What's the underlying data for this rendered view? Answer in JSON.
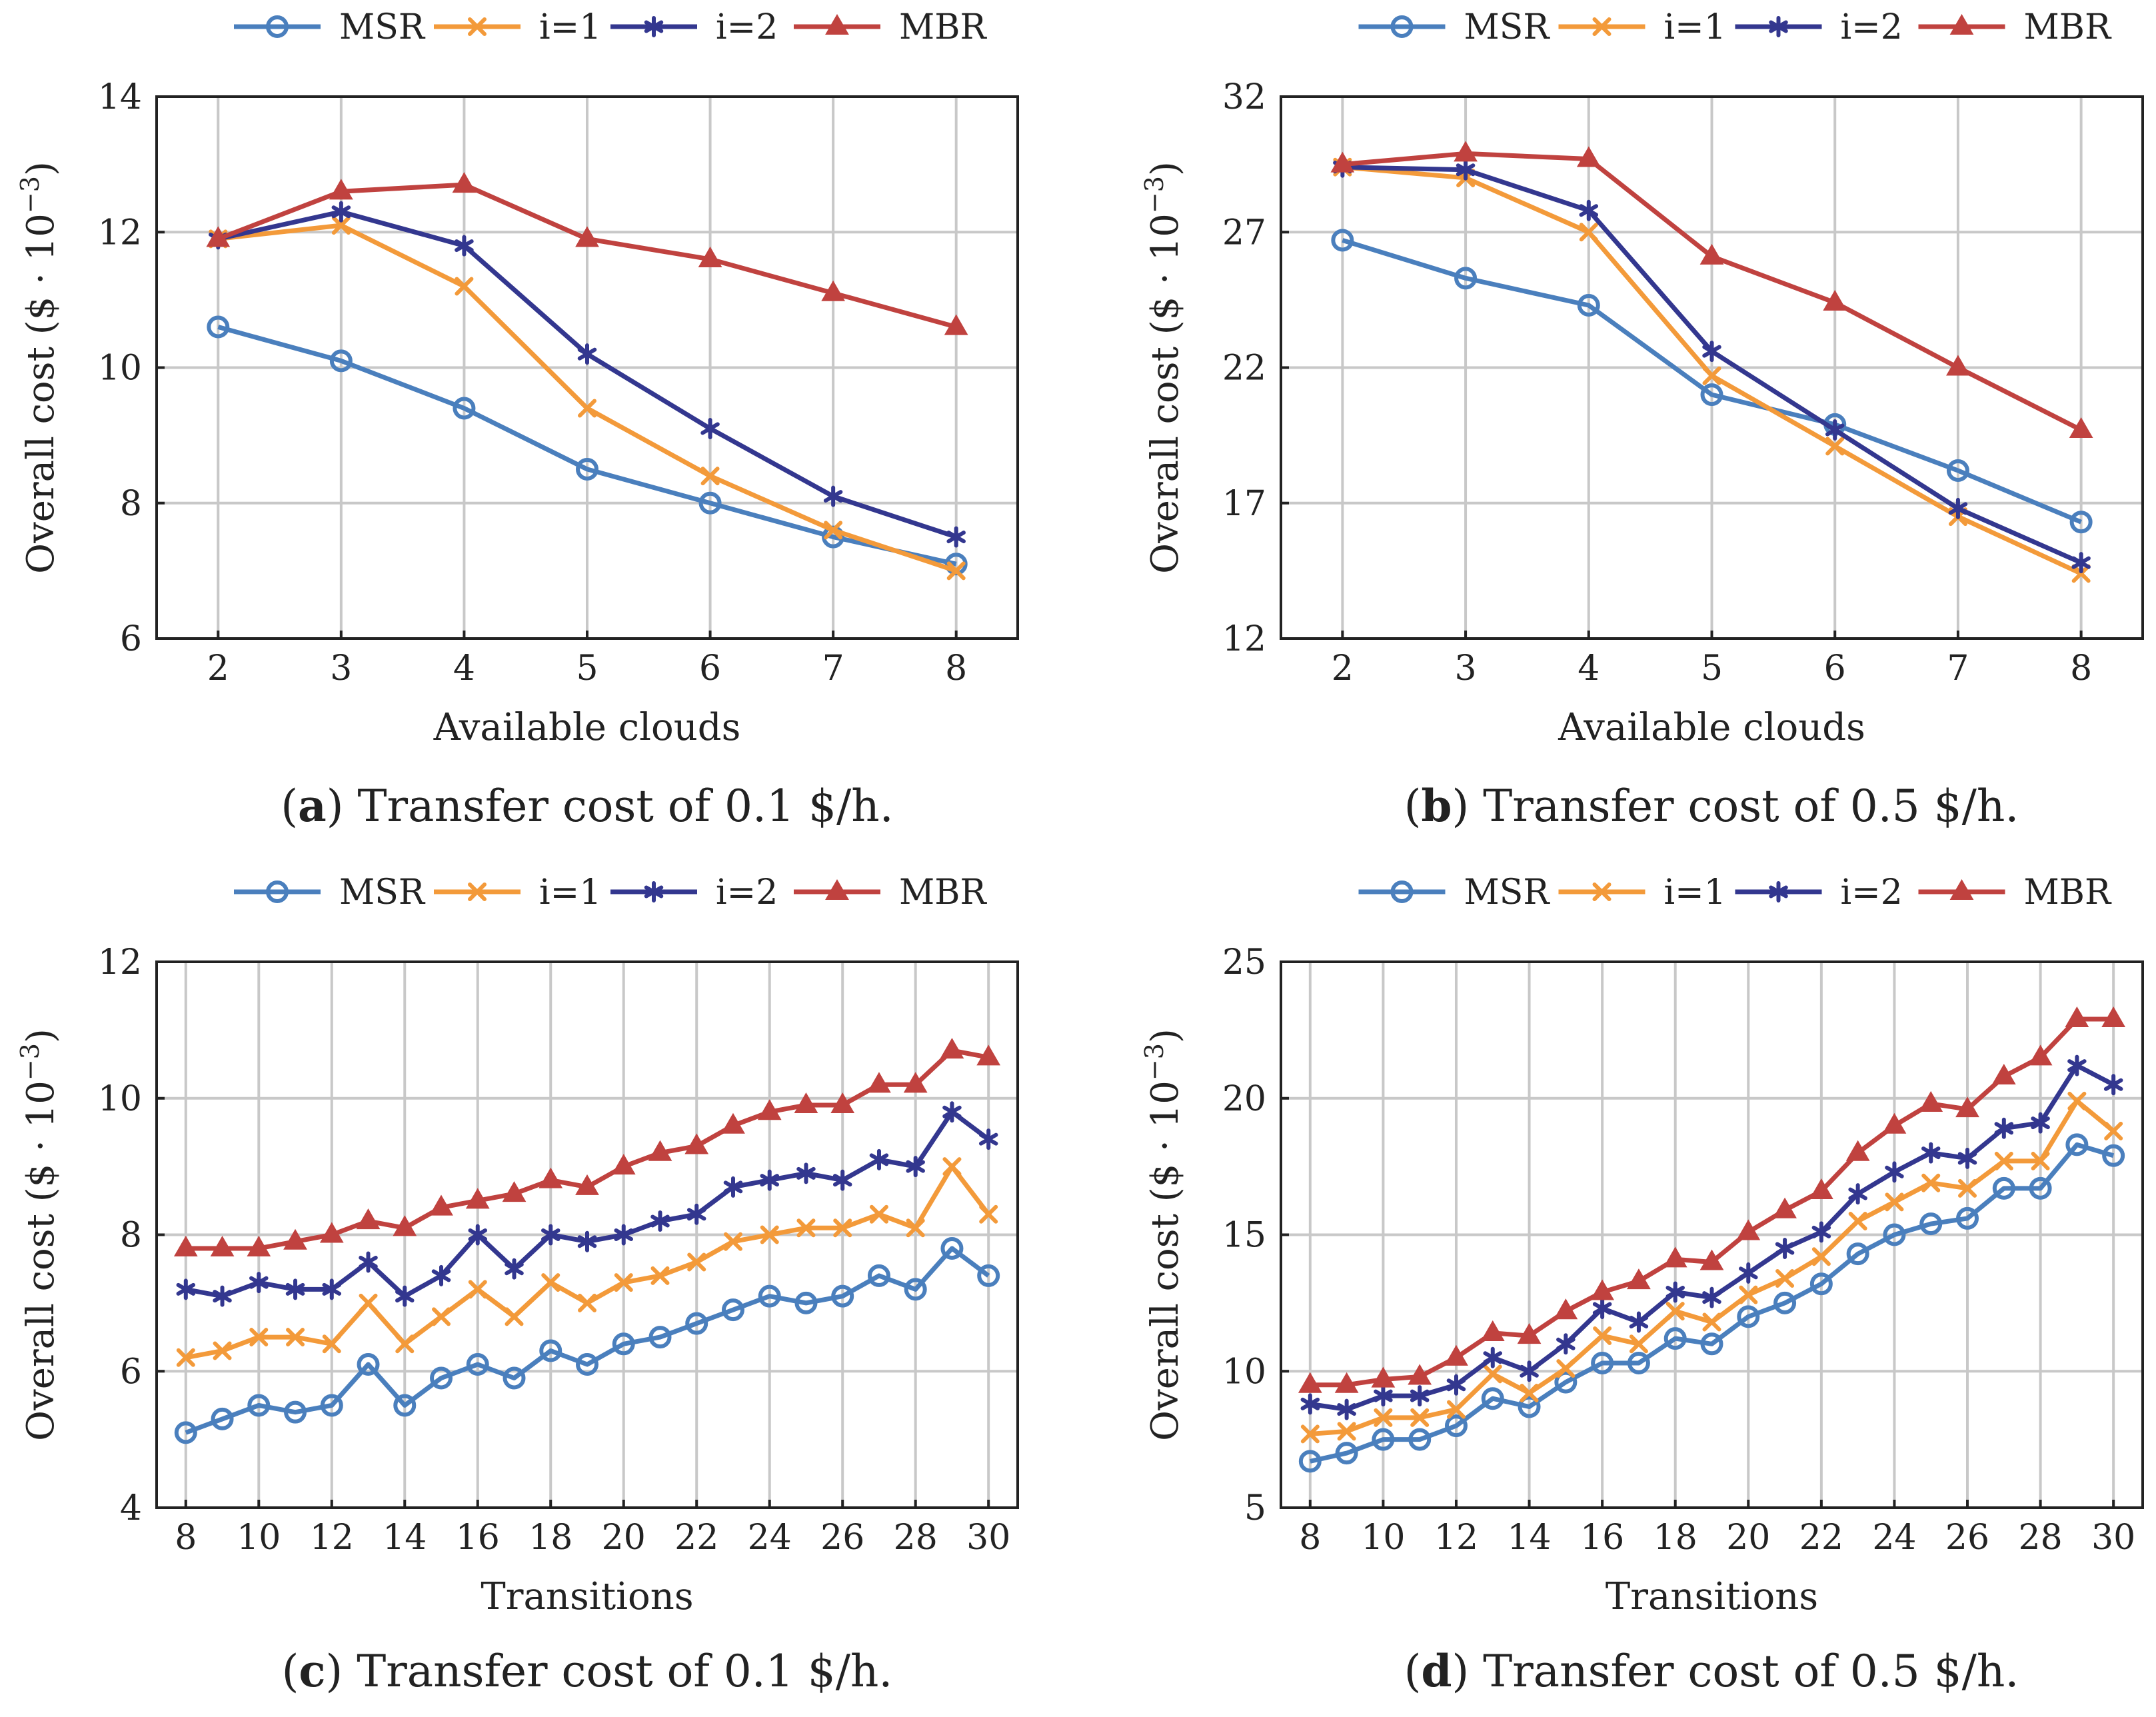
{
  "series_styles": [
    {
      "name": "MSR",
      "color": "#4a7fbd",
      "marker": "circle"
    },
    {
      "name": "i=1",
      "color": "#f39a3a",
      "marker": "x"
    },
    {
      "name": "i=2",
      "color": "#33378f",
      "marker": "star"
    },
    {
      "name": "MBR",
      "color": "#c0423f",
      "marker": "triangle"
    }
  ],
  "chart_data": [
    {
      "type": "line",
      "id": "a",
      "caption_letter": "a",
      "caption_text": "Transfer cost of 0.1 $/h.",
      "xlabel": "Available clouds",
      "ylabel": "Overall cost ($ · 10",
      "ylabel_exp": "−3",
      "ylabel_close": ")",
      "x": [
        2,
        3,
        4,
        5,
        6,
        7,
        8
      ],
      "xlim": [
        1.5,
        8.5
      ],
      "ylim": [
        6,
        14
      ],
      "xticks": [
        2,
        3,
        4,
        5,
        6,
        7,
        8
      ],
      "yticks": [
        6,
        8,
        10,
        12,
        14
      ],
      "legend": [
        "MSR",
        "i=1",
        "i=2",
        "MBR"
      ],
      "series": [
        {
          "name": "MSR",
          "values": [
            10.6,
            10.1,
            9.4,
            8.5,
            8.0,
            7.5,
            7.1
          ]
        },
        {
          "name": "i=1",
          "values": [
            11.9,
            12.1,
            11.2,
            9.4,
            8.4,
            7.6,
            7.0
          ]
        },
        {
          "name": "i=2",
          "values": [
            11.9,
            12.3,
            11.8,
            10.2,
            9.1,
            8.1,
            7.5
          ]
        },
        {
          "name": "MBR",
          "values": [
            11.9,
            12.6,
            12.7,
            11.9,
            11.6,
            11.1,
            10.6
          ]
        }
      ]
    },
    {
      "type": "line",
      "id": "b",
      "caption_letter": "b",
      "caption_text": "Transfer cost of 0.5 $/h.",
      "xlabel": "Available clouds",
      "ylabel": "Overall cost ($ · 10",
      "ylabel_exp": "−3",
      "ylabel_close": ")",
      "x": [
        2,
        3,
        4,
        5,
        6,
        7,
        8
      ],
      "xlim": [
        1.5,
        8.5
      ],
      "ylim": [
        12,
        32
      ],
      "xticks": [
        2,
        3,
        4,
        5,
        6,
        7,
        8
      ],
      "yticks": [
        12,
        17,
        22,
        27,
        32
      ],
      "legend": [
        "MSR",
        "i=1",
        "i=2",
        "MBR"
      ],
      "series": [
        {
          "name": "MSR",
          "values": [
            26.7,
            25.3,
            24.3,
            21.0,
            19.9,
            18.2,
            16.3
          ]
        },
        {
          "name": "i=1",
          "values": [
            29.4,
            29.0,
            27.0,
            21.7,
            19.1,
            16.5,
            14.4
          ]
        },
        {
          "name": "i=2",
          "values": [
            29.4,
            29.3,
            27.8,
            22.6,
            19.7,
            16.8,
            14.8
          ]
        },
        {
          "name": "MBR",
          "values": [
            29.5,
            29.9,
            29.7,
            26.1,
            24.4,
            22.0,
            19.7
          ]
        }
      ]
    },
    {
      "type": "line",
      "id": "c",
      "caption_letter": "c",
      "caption_text": "Transfer cost of 0.1 $/h.",
      "xlabel": "Transitions",
      "ylabel": "Overall cost ($ · 10",
      "ylabel_exp": "−3",
      "ylabel_close": ")",
      "x": [
        8,
        9,
        10,
        11,
        12,
        13,
        14,
        15,
        16,
        17,
        18,
        19,
        20,
        21,
        22,
        23,
        24,
        25,
        26,
        27,
        28,
        29,
        30
      ],
      "xlim": [
        7.2,
        30.8
      ],
      "ylim": [
        4,
        12
      ],
      "xticks": [
        8,
        10,
        12,
        14,
        16,
        18,
        20,
        22,
        24,
        26,
        28,
        30
      ],
      "yticks": [
        4,
        6,
        8,
        10,
        12
      ],
      "legend": [
        "MSR",
        "i=1",
        "i=2",
        "MBR"
      ],
      "series": [
        {
          "name": "MSR",
          "values": [
            5.1,
            5.3,
            5.5,
            5.4,
            5.5,
            6.1,
            5.5,
            5.9,
            6.1,
            5.9,
            6.3,
            6.1,
            6.4,
            6.5,
            6.7,
            6.9,
            7.1,
            7.0,
            7.1,
            7.4,
            7.2,
            7.8,
            7.4
          ]
        },
        {
          "name": "i=1",
          "values": [
            6.2,
            6.3,
            6.5,
            6.5,
            6.4,
            7.0,
            6.4,
            6.8,
            7.2,
            6.8,
            7.3,
            7.0,
            7.3,
            7.4,
            7.6,
            7.9,
            8.0,
            8.1,
            8.1,
            8.3,
            8.1,
            9.0,
            8.3
          ]
        },
        {
          "name": "i=2",
          "values": [
            7.2,
            7.1,
            7.3,
            7.2,
            7.2,
            7.6,
            7.1,
            7.4,
            8.0,
            7.5,
            8.0,
            7.9,
            8.0,
            8.2,
            8.3,
            8.7,
            8.8,
            8.9,
            8.8,
            9.1,
            9.0,
            9.8,
            9.4
          ]
        },
        {
          "name": "MBR",
          "values": [
            7.8,
            7.8,
            7.8,
            7.9,
            8.0,
            8.2,
            8.1,
            8.4,
            8.5,
            8.6,
            8.8,
            8.7,
            9.0,
            9.2,
            9.3,
            9.6,
            9.8,
            9.9,
            9.9,
            10.2,
            10.2,
            10.7,
            10.6
          ]
        }
      ]
    },
    {
      "type": "line",
      "id": "d",
      "caption_letter": "d",
      "caption_text": "Transfer cost of 0.5 $/h.",
      "xlabel": "Transitions",
      "ylabel": "Overall cost ($ · 10",
      "ylabel_exp": "−3",
      "ylabel_close": ")",
      "x": [
        8,
        9,
        10,
        11,
        12,
        13,
        14,
        15,
        16,
        17,
        18,
        19,
        20,
        21,
        22,
        23,
        24,
        25,
        26,
        27,
        28,
        29,
        30
      ],
      "xlim": [
        7.2,
        30.8
      ],
      "ylim": [
        5,
        25
      ],
      "xticks": [
        8,
        10,
        12,
        14,
        16,
        18,
        20,
        22,
        24,
        26,
        28,
        30
      ],
      "yticks": [
        5,
        10,
        15,
        20,
        25
      ],
      "legend": [
        "MSR",
        "i=1",
        "i=2",
        "MBR"
      ],
      "series": [
        {
          "name": "MSR",
          "values": [
            6.7,
            7.0,
            7.5,
            7.5,
            8.0,
            9.0,
            8.7,
            9.6,
            10.3,
            10.3,
            11.2,
            11.0,
            12.0,
            12.5,
            13.2,
            14.3,
            15.0,
            15.4,
            15.6,
            16.7,
            16.7,
            18.3,
            17.9
          ]
        },
        {
          "name": "i=1",
          "values": [
            7.7,
            7.8,
            8.3,
            8.3,
            8.6,
            9.9,
            9.2,
            10.1,
            11.3,
            11.0,
            12.2,
            11.8,
            12.8,
            13.4,
            14.2,
            15.5,
            16.2,
            16.9,
            16.7,
            17.7,
            17.7,
            19.9,
            18.8
          ]
        },
        {
          "name": "i=2",
          "values": [
            8.8,
            8.6,
            9.1,
            9.1,
            9.5,
            10.5,
            10.0,
            11.0,
            12.3,
            11.8,
            12.9,
            12.7,
            13.6,
            14.5,
            15.1,
            16.5,
            17.3,
            18.0,
            17.8,
            18.9,
            19.1,
            21.2,
            20.5
          ]
        },
        {
          "name": "MBR",
          "values": [
            9.5,
            9.5,
            9.7,
            9.8,
            10.5,
            11.4,
            11.3,
            12.2,
            12.9,
            13.3,
            14.1,
            14.0,
            15.1,
            15.9,
            16.6,
            18.0,
            19.0,
            19.8,
            19.6,
            20.8,
            21.5,
            22.9,
            22.9
          ]
        }
      ]
    }
  ]
}
